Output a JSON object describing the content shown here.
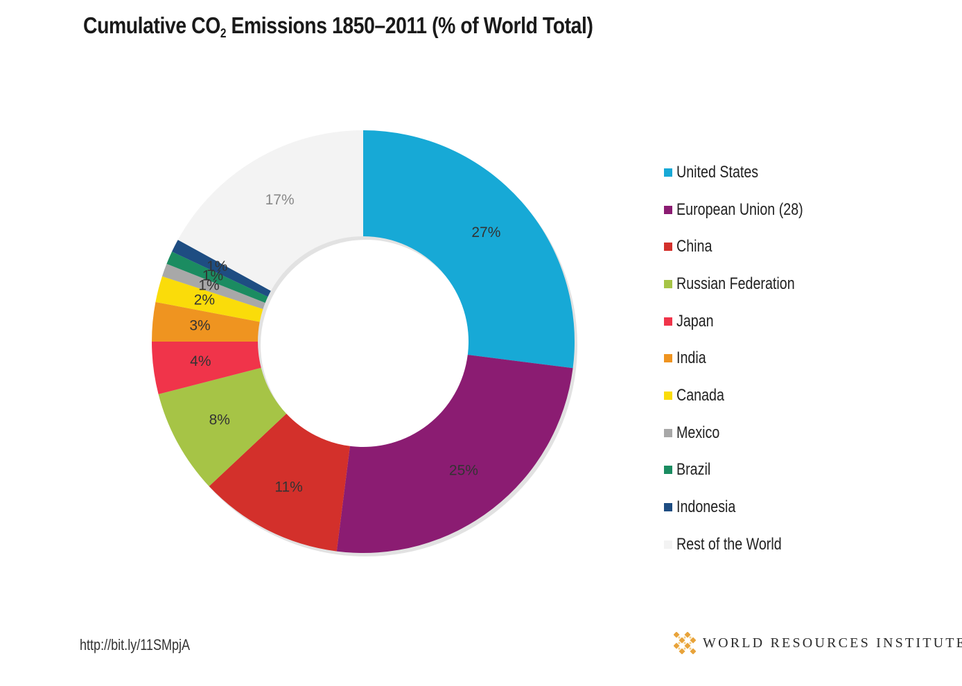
{
  "title": {
    "pre": "Cumulative CO",
    "sub": "2",
    "post": " Emissions 1850–2011 (% of World Total)"
  },
  "chart_data": {
    "type": "pie",
    "title": "Cumulative CO2 Emissions 1850–2011 (% of World Total)",
    "legend_position": "right",
    "unit": "%",
    "slices": [
      {
        "name": "United States",
        "value": 27,
        "label": "27%",
        "color": "#17a9d6"
      },
      {
        "name": "European Union (28)",
        "value": 25,
        "label": "25%",
        "color": "#8b1c72"
      },
      {
        "name": "China",
        "value": 11,
        "label": "11%",
        "color": "#d3302b"
      },
      {
        "name": "Russian Federation",
        "value": 8,
        "label": "8%",
        "color": "#a6c446"
      },
      {
        "name": "Japan",
        "value": 4,
        "label": "4%",
        "color": "#f0344a"
      },
      {
        "name": "India",
        "value": 3,
        "label": "3%",
        "color": "#ef9420"
      },
      {
        "name": "Canada",
        "value": 2,
        "label": "2%",
        "color": "#fadc0a"
      },
      {
        "name": "Mexico",
        "value": 1,
        "label": "1%",
        "color": "#a8a8a8"
      },
      {
        "name": "Brazil",
        "value": 1,
        "label": "1%",
        "color": "#1b8c61"
      },
      {
        "name": "Indonesia",
        "value": 1,
        "label": "1%",
        "color": "#1e4d82"
      },
      {
        "name": "Rest of the World",
        "value": 17,
        "label": "17%",
        "color": "#f3f3f3"
      }
    ]
  },
  "footer": {
    "url": "http://bit.ly/11SMpjA",
    "brand": "WORLD RESOURCES INSTITUTE"
  },
  "colors": {
    "logo": "#e8a33a"
  },
  "icons": {
    "logo": "wri-logo-icon"
  }
}
